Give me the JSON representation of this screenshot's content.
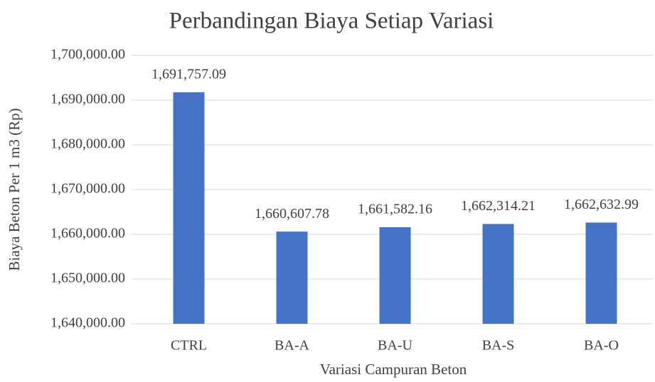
{
  "chart_data": {
    "type": "bar",
    "title": "Perbandingan Biaya Setiap Variasi",
    "x_label": "Variasi Campuran Beton",
    "y_label": "Biaya Beton Per 1 m3 (Rp)",
    "categories": [
      "CTRL",
      "BA-A",
      "BA-U",
      "BA-S",
      "BA-O"
    ],
    "values": [
      1691757.09,
      1660607.78,
      1661582.16,
      1662314.21,
      1662632.99
    ],
    "value_labels": [
      "1,691,757.09",
      "1,660,607.78",
      "1,661,582.16",
      "1,662,314.21",
      "1,662,632.99"
    ],
    "color": "#4472c4",
    "ylim": [
      1640000,
      1700000
    ],
    "yticks": [
      {
        "value": 1640000,
        "label": "1,640,000.00"
      },
      {
        "value": 1650000,
        "label": "1,650,000.00"
      },
      {
        "value": 1660000,
        "label": "1,660,000.00"
      },
      {
        "value": 1670000,
        "label": "1,670,000.00"
      },
      {
        "value": 1680000,
        "label": "1,680,000.00"
      },
      {
        "value": 1690000,
        "label": "1,690,000.00"
      },
      {
        "value": 1700000,
        "label": "1,700,000.00"
      }
    ],
    "grid": true
  }
}
